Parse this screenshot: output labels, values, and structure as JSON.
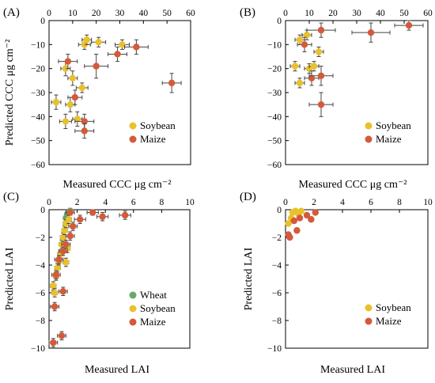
{
  "chart_data": [
    {
      "type": "scatter",
      "panel_label": "(A)",
      "xlabel": "Measured CCC μg cm⁻²",
      "ylabel": "Predicted CCC μg cm⁻²",
      "xlim": [
        0,
        60
      ],
      "ylim": [
        -60,
        0
      ],
      "xticks": [
        0,
        10,
        20,
        30,
        40,
        50,
        60
      ],
      "yticks": [
        0,
        -10,
        -20,
        -30,
        -40,
        -50,
        -60
      ],
      "legend_position": "bottom-right",
      "series": [
        {
          "name": "Soybean",
          "color": "#e8c12c",
          "points": [
            {
              "x": 3,
              "y": -34,
              "xerr": 2,
              "yerr": 3
            },
            {
              "x": 7,
              "y": -20,
              "xerr": 2,
              "yerr": 3
            },
            {
              "x": 7,
              "y": -42,
              "xerr": 2.5,
              "yerr": 3
            },
            {
              "x": 10,
              "y": -24,
              "xerr": 2,
              "yerr": 3
            },
            {
              "x": 9,
              "y": -35,
              "xerr": 2,
              "yerr": 3
            },
            {
              "x": 12,
              "y": -41,
              "xerr": 2,
              "yerr": 3
            },
            {
              "x": 14,
              "y": -28,
              "xerr": 2.5,
              "yerr": 2
            },
            {
              "x": 15,
              "y": -10,
              "xerr": 2.5,
              "yerr": 2
            },
            {
              "x": 16,
              "y": -8,
              "xerr": 2,
              "yerr": 2
            },
            {
              "x": 21,
              "y": -9,
              "xerr": 3,
              "yerr": 2
            },
            {
              "x": 31,
              "y": -10,
              "xerr": 3,
              "yerr": 2
            }
          ]
        },
        {
          "name": "Maize",
          "color": "#d35a3a",
          "points": [
            {
              "x": 8,
              "y": -17,
              "xerr": 4,
              "yerr": 3
            },
            {
              "x": 11,
              "y": -32,
              "xerr": 3,
              "yerr": 3
            },
            {
              "x": 15,
              "y": -42,
              "xerr": 4,
              "yerr": 3
            },
            {
              "x": 15,
              "y": -46,
              "xerr": 4,
              "yerr": 3
            },
            {
              "x": 20,
              "y": -19,
              "xerr": 5,
              "yerr": 5
            },
            {
              "x": 29,
              "y": -14,
              "xerr": 4,
              "yerr": 3
            },
            {
              "x": 37,
              "y": -11,
              "xerr": 5,
              "yerr": 3
            },
            {
              "x": 52,
              "y": -26,
              "xerr": 4,
              "yerr": 4
            }
          ]
        }
      ]
    },
    {
      "type": "scatter",
      "panel_label": "(B)",
      "xlabel": "Measured CCC μg cm⁻²",
      "ylabel": "",
      "xlim": [
        0,
        60
      ],
      "ylim": [
        -60,
        0
      ],
      "xticks": [
        0,
        10,
        20,
        30,
        40,
        50,
        60
      ],
      "yticks": [
        0,
        -10,
        -20,
        -30,
        -40,
        -50,
        -60
      ],
      "legend_position": "bottom-right",
      "series": [
        {
          "name": "Soybean",
          "color": "#e8c12c",
          "points": [
            {
              "x": 4,
              "y": -19,
              "xerr": 2,
              "yerr": 2
            },
            {
              "x": 6,
              "y": -8,
              "xerr": 2,
              "yerr": 2
            },
            {
              "x": 6,
              "y": -26,
              "xerr": 2,
              "yerr": 2
            },
            {
              "x": 9,
              "y": -6,
              "xerr": 2,
              "yerr": 2
            },
            {
              "x": 10,
              "y": -20,
              "xerr": 2,
              "yerr": 2
            },
            {
              "x": 12,
              "y": -19,
              "xerr": 2,
              "yerr": 2
            },
            {
              "x": 14,
              "y": -13,
              "xerr": 2,
              "yerr": 2
            }
          ]
        },
        {
          "name": "Maize",
          "color": "#d35a3a",
          "points": [
            {
              "x": 8,
              "y": -10,
              "xerr": 3,
              "yerr": 3
            },
            {
              "x": 11,
              "y": -24,
              "xerr": 3,
              "yerr": 3
            },
            {
              "x": 15,
              "y": -4,
              "xerr": 6,
              "yerr": 3
            },
            {
              "x": 15,
              "y": -23,
              "xerr": 5,
              "yerr": 4
            },
            {
              "x": 15,
              "y": -35,
              "xerr": 5,
              "yerr": 5
            },
            {
              "x": 36,
              "y": -5,
              "xerr": 8,
              "yerr": 4
            },
            {
              "x": 52,
              "y": -2,
              "xerr": 6,
              "yerr": 2
            }
          ]
        }
      ]
    },
    {
      "type": "scatter",
      "panel_label": "(C)",
      "xlabel": "Measured LAI",
      "ylabel": "Predicted LAI",
      "xlim": [
        0,
        10
      ],
      "ylim": [
        -10,
        0
      ],
      "xticks": [
        0,
        2,
        4,
        6,
        8,
        10
      ],
      "yticks": [
        0,
        -2,
        -4,
        -6,
        -8,
        -10
      ],
      "legend_position": "bottom-right",
      "series": [
        {
          "name": "Wheat",
          "color": "#6aa86a",
          "points": [
            {
              "x": 1.2,
              "y": -0.6,
              "xerr": 0.15,
              "yerr": 0.2
            },
            {
              "x": 1.3,
              "y": -0.3,
              "xerr": 0.15,
              "yerr": 0.2
            },
            {
              "x": 1.5,
              "y": -0.1,
              "xerr": 0.15,
              "yerr": 0.2
            }
          ]
        },
        {
          "name": "Soybean",
          "color": "#e8c12c",
          "points": [
            {
              "x": 0.3,
              "y": -5.5,
              "xerr": 0.2,
              "yerr": 0.3
            },
            {
              "x": 0.4,
              "y": -6.0,
              "xerr": 0.2,
              "yerr": 0.3
            },
            {
              "x": 0.5,
              "y": -4.8,
              "xerr": 0.2,
              "yerr": 0.3
            },
            {
              "x": 0.6,
              "y": -4.2,
              "xerr": 0.2,
              "yerr": 0.3
            },
            {
              "x": 0.7,
              "y": -3.7,
              "xerr": 0.2,
              "yerr": 0.3
            },
            {
              "x": 0.8,
              "y": -3.2,
              "xerr": 0.2,
              "yerr": 0.3
            },
            {
              "x": 0.9,
              "y": -2.5,
              "xerr": 0.2,
              "yerr": 0.3
            },
            {
              "x": 1.0,
              "y": -2.0,
              "xerr": 0.2,
              "yerr": 0.3
            },
            {
              "x": 1.1,
              "y": -1.5,
              "xerr": 0.2,
              "yerr": 0.3
            },
            {
              "x": 1.2,
              "y": -1.0,
              "xerr": 0.2,
              "yerr": 0.3
            },
            {
              "x": 1.4,
              "y": -0.7,
              "xerr": 0.2,
              "yerr": 0.3
            },
            {
              "x": 1.3,
              "y": -2.8,
              "xerr": 0.2,
              "yerr": 0.3
            },
            {
              "x": 1.2,
              "y": -3.8,
              "xerr": 0.2,
              "yerr": 0.3
            }
          ]
        },
        {
          "name": "Maize",
          "color": "#d35a3a",
          "points": [
            {
              "x": 0.3,
              "y": -9.6,
              "xerr": 0.3,
              "yerr": 0.3
            },
            {
              "x": 0.9,
              "y": -9.1,
              "xerr": 0.3,
              "yerr": 0.3
            },
            {
              "x": 0.4,
              "y": -7.0,
              "xerr": 0.3,
              "yerr": 0.3
            },
            {
              "x": 1.0,
              "y": -5.9,
              "xerr": 0.3,
              "yerr": 0.3
            },
            {
              "x": 0.5,
              "y": -4.7,
              "xerr": 0.3,
              "yerr": 0.3
            },
            {
              "x": 0.7,
              "y": -3.6,
              "xerr": 0.3,
              "yerr": 0.3
            },
            {
              "x": 1.0,
              "y": -3.0,
              "xerr": 0.3,
              "yerr": 0.3
            },
            {
              "x": 1.2,
              "y": -2.5,
              "xerr": 0.3,
              "yerr": 0.3
            },
            {
              "x": 1.5,
              "y": -1.9,
              "xerr": 0.3,
              "yerr": 0.3
            },
            {
              "x": 1.7,
              "y": -1.2,
              "xerr": 0.3,
              "yerr": 0.3
            },
            {
              "x": 2.2,
              "y": -0.7,
              "xerr": 0.4,
              "yerr": 0.3
            },
            {
              "x": 3.1,
              "y": -0.2,
              "xerr": 0.4,
              "yerr": 0.2
            },
            {
              "x": 3.8,
              "y": -0.5,
              "xerr": 0.4,
              "yerr": 0.3
            },
            {
              "x": 5.4,
              "y": -0.4,
              "xerr": 0.4,
              "yerr": 0.3
            },
            {
              "x": 1.5,
              "y": -0.2,
              "xerr": 0.3,
              "yerr": 0.2
            }
          ]
        }
      ]
    },
    {
      "type": "scatter",
      "panel_label": "(D)",
      "xlabel": "Measured LAI",
      "ylabel": "Predicted LAI",
      "xlim": [
        0,
        10
      ],
      "ylim": [
        -10,
        0
      ],
      "xticks": [
        0,
        2,
        4,
        6,
        8,
        10
      ],
      "yticks": [
        0,
        -2,
        -4,
        -6,
        -8,
        -10
      ],
      "legend_position": "bottom-right",
      "series": [
        {
          "name": "Soybean",
          "color": "#e8c12c",
          "points": [
            {
              "x": 0.2,
              "y": -1.0,
              "xerr": 0.15,
              "yerr": 0.15
            },
            {
              "x": 0.4,
              "y": -0.6,
              "xerr": 0.15,
              "yerr": 0.15
            },
            {
              "x": 0.5,
              "y": -0.2,
              "xerr": 0.15,
              "yerr": 0.15
            },
            {
              "x": 0.7,
              "y": -0.1,
              "xerr": 0.15,
              "yerr": 0.15
            },
            {
              "x": 0.9,
              "y": -0.3,
              "xerr": 0.15,
              "yerr": 0.15
            },
            {
              "x": 1.1,
              "y": -0.1,
              "xerr": 0.15,
              "yerr": 0.15
            }
          ]
        },
        {
          "name": "Maize",
          "color": "#d35a3a",
          "points": [
            {
              "x": 0.2,
              "y": -1.8,
              "xerr": 0.15,
              "yerr": 0.15
            },
            {
              "x": 0.3,
              "y": -2.0,
              "xerr": 0.15,
              "yerr": 0.15
            },
            {
              "x": 0.6,
              "y": -0.8,
              "xerr": 0.15,
              "yerr": 0.15
            },
            {
              "x": 0.8,
              "y": -1.5,
              "xerr": 0.15,
              "yerr": 0.15
            },
            {
              "x": 1.0,
              "y": -0.6,
              "xerr": 0.15,
              "yerr": 0.15
            },
            {
              "x": 1.5,
              "y": -0.4,
              "xerr": 0.15,
              "yerr": 0.15
            },
            {
              "x": 1.8,
              "y": -0.7,
              "xerr": 0.15,
              "yerr": 0.15
            },
            {
              "x": 2.1,
              "y": -0.2,
              "xerr": 0.15,
              "yerr": 0.15
            }
          ]
        }
      ]
    }
  ]
}
